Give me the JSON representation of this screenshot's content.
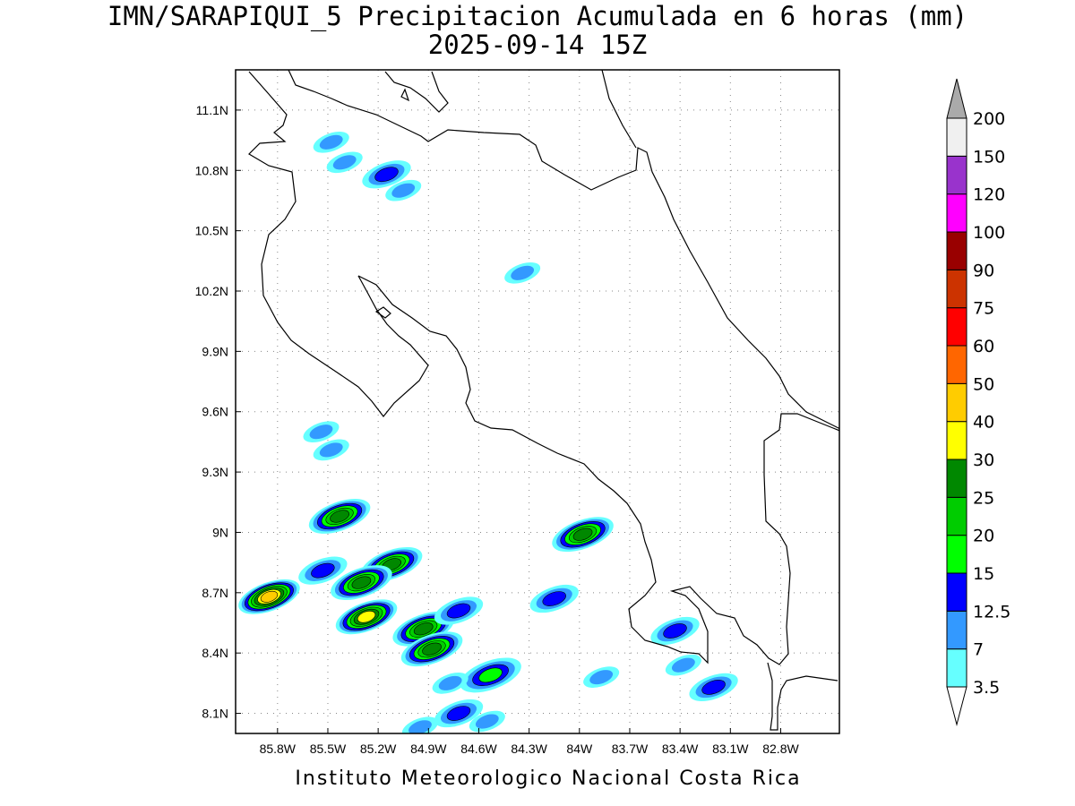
{
  "header": {
    "title_line1": "IMN/SARAPIQUI_5 Precipitacion Acumulada en 6 horas (mm)",
    "title_line2": "2025-09-14 15Z"
  },
  "footer": {
    "text": "Instituto Meteorologico Nacional Costa Rica"
  },
  "map": {
    "lon_range": [
      -86.05,
      -82.45
    ],
    "lat_range": [
      8.0,
      11.3
    ],
    "lon_ticks": [
      {
        "value": -85.8,
        "label": "85.8W"
      },
      {
        "value": -85.5,
        "label": "85.5W"
      },
      {
        "value": -85.2,
        "label": "85.2W"
      },
      {
        "value": -84.9,
        "label": "84.9W"
      },
      {
        "value": -84.6,
        "label": "84.6W"
      },
      {
        "value": -84.3,
        "label": "84.3W"
      },
      {
        "value": -84.0,
        "label": "84W"
      },
      {
        "value": -83.7,
        "label": "83.7W"
      },
      {
        "value": -83.4,
        "label": "83.4W"
      },
      {
        "value": -83.1,
        "label": "83.1W"
      },
      {
        "value": -82.8,
        "label": "82.8W"
      }
    ],
    "lat_ticks": [
      {
        "value": 8.1,
        "label": "8.1N"
      },
      {
        "value": 8.4,
        "label": "8.4N"
      },
      {
        "value": 8.7,
        "label": "8.7N"
      },
      {
        "value": 9.0,
        "label": "9N"
      },
      {
        "value": 9.3,
        "label": "9.3N"
      },
      {
        "value": 9.6,
        "label": "9.6N"
      },
      {
        "value": 9.9,
        "label": "9.9N"
      },
      {
        "value": 10.2,
        "label": "10.2N"
      },
      {
        "value": 10.5,
        "label": "10.5N"
      },
      {
        "value": 10.8,
        "label": "10.8N"
      },
      {
        "value": 11.1,
        "label": "11.1N"
      }
    ],
    "grid": true,
    "rain_cells": [
      {
        "lon": -85.85,
        "lat": 8.68,
        "level": 7
      },
      {
        "lon": -85.27,
        "lat": 8.58,
        "level": 6
      },
      {
        "lon": -84.93,
        "lat": 8.52,
        "level": 5
      },
      {
        "lon": -84.88,
        "lat": 8.42,
        "level": 5
      },
      {
        "lon": -85.12,
        "lat": 8.84,
        "level": 5
      },
      {
        "lon": -85.3,
        "lat": 8.75,
        "level": 5
      },
      {
        "lon": -85.43,
        "lat": 9.08,
        "level": 5
      },
      {
        "lon": -83.98,
        "lat": 8.99,
        "level": 5
      },
      {
        "lon": -85.53,
        "lat": 8.81,
        "level": 2
      },
      {
        "lon": -84.72,
        "lat": 8.61,
        "level": 2
      },
      {
        "lon": -84.15,
        "lat": 8.67,
        "level": 2
      },
      {
        "lon": -84.53,
        "lat": 8.29,
        "level": 3
      },
      {
        "lon": -84.72,
        "lat": 8.1,
        "level": 2
      },
      {
        "lon": -85.15,
        "lat": 10.78,
        "level": 2
      },
      {
        "lon": -85.48,
        "lat": 10.94,
        "level": 1
      },
      {
        "lon": -85.4,
        "lat": 10.84,
        "level": 1
      },
      {
        "lon": -85.05,
        "lat": 10.7,
        "level": 1
      },
      {
        "lon": -84.34,
        "lat": 10.29,
        "level": 1
      },
      {
        "lon": -85.54,
        "lat": 9.5,
        "level": 1
      },
      {
        "lon": -85.48,
        "lat": 9.41,
        "level": 1
      },
      {
        "lon": -83.43,
        "lat": 8.51,
        "level": 2
      },
      {
        "lon": -83.38,
        "lat": 8.34,
        "level": 1
      },
      {
        "lon": -83.2,
        "lat": 8.23,
        "level": 2
      },
      {
        "lon": -84.77,
        "lat": 8.25,
        "level": 1
      },
      {
        "lon": -84.55,
        "lat": 8.06,
        "level": 1
      },
      {
        "lon": -83.87,
        "lat": 8.28,
        "level": 1
      },
      {
        "lon": -84.95,
        "lat": 8.03,
        "level": 1
      }
    ]
  },
  "colorbar": {
    "levels": [
      "3.5",
      "7",
      "12.5",
      "15",
      "20",
      "25",
      "30",
      "40",
      "50",
      "60",
      "75",
      "90",
      "100",
      "120",
      "150",
      "200"
    ],
    "colors": [
      "#66ffff",
      "#3399ff",
      "#0000ff",
      "#00ff00",
      "#00cc00",
      "#008800",
      "#ffff00",
      "#ffcc00",
      "#ff6600",
      "#ff0000",
      "#cc3300",
      "#990000",
      "#ff00ff",
      "#9933cc",
      "#f0f0f0",
      "#aaaaaa"
    ]
  }
}
